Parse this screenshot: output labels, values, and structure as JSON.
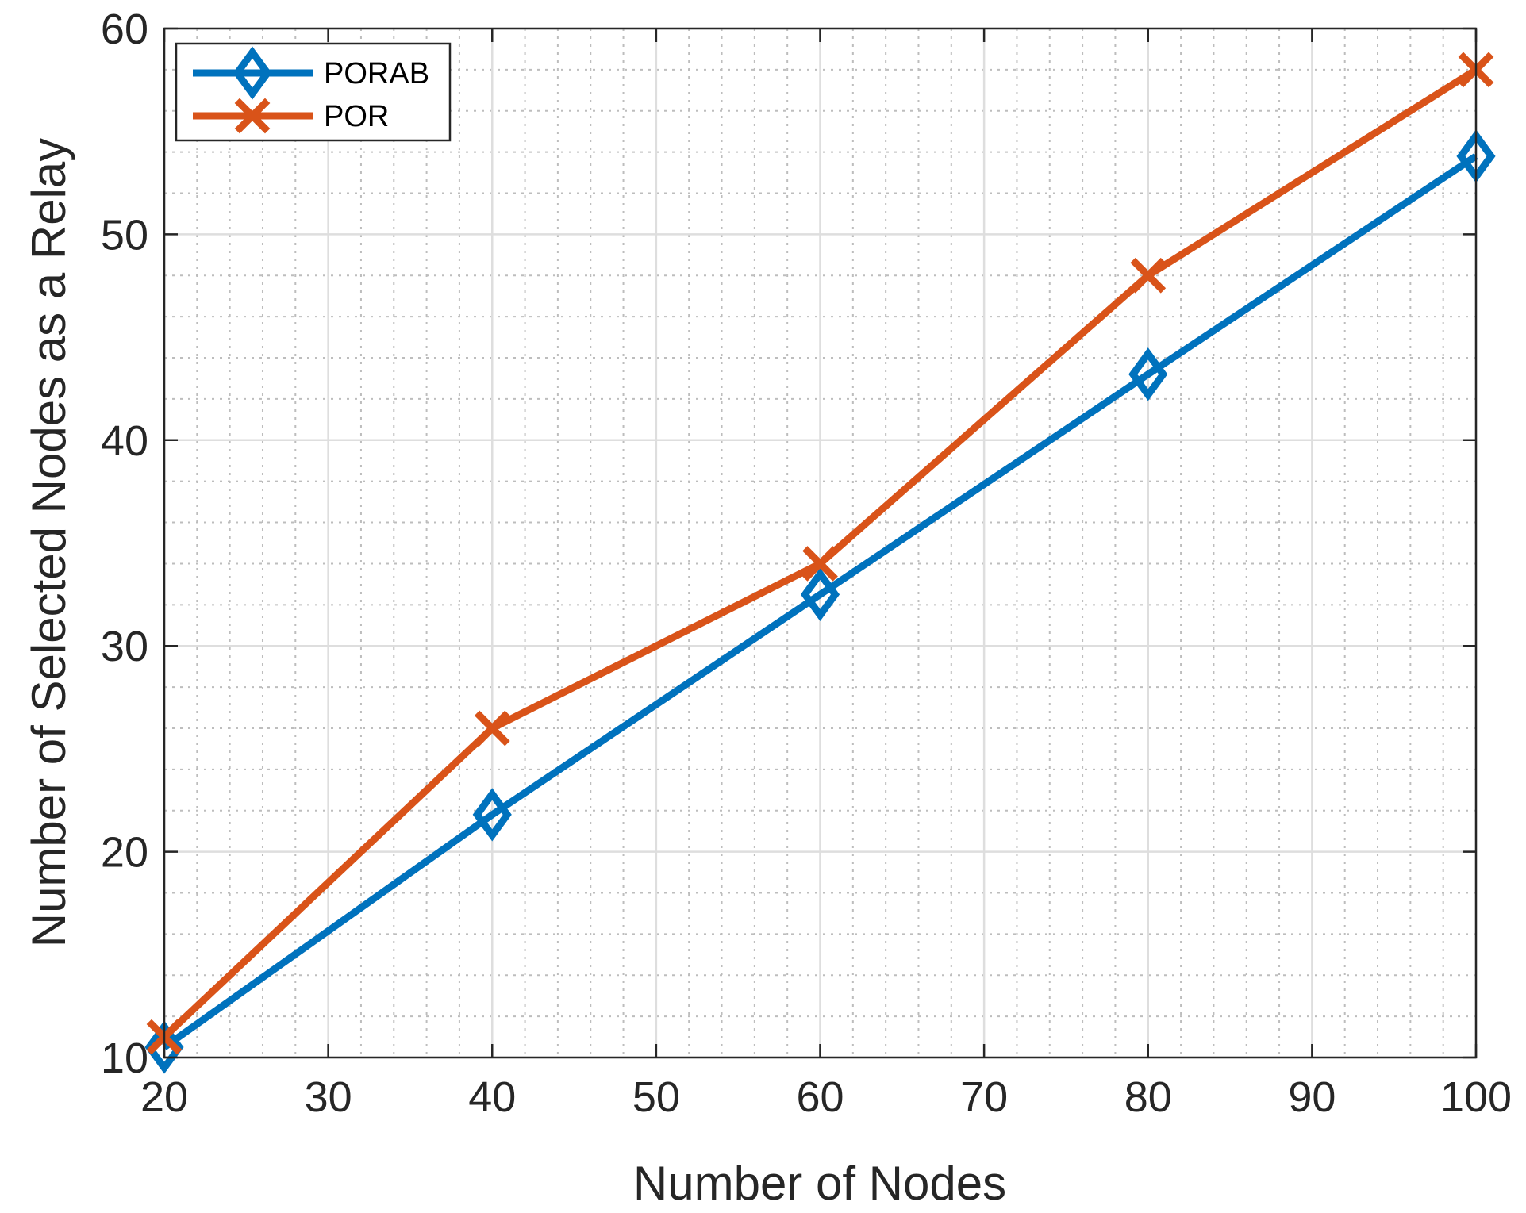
{
  "chart_data": {
    "type": "line",
    "title": "",
    "xlabel": "Number of Nodes",
    "ylabel": "Number of Selected Nodes as a Relay",
    "xlim": [
      20,
      100
    ],
    "ylim": [
      10,
      60
    ],
    "x_ticks": [
      20,
      30,
      40,
      50,
      60,
      70,
      80,
      90,
      100
    ],
    "y_ticks": [
      10,
      20,
      30,
      40,
      50,
      60
    ],
    "x_minor_step": 2,
    "y_minor_step": 2,
    "grid": true,
    "minor_grid": true,
    "legend_position": "top-left",
    "x": [
      20,
      40,
      60,
      80,
      100
    ],
    "series": [
      {
        "name": "PORAB",
        "values": [
          10.5,
          21.8,
          32.5,
          43.2,
          53.8
        ],
        "color": "#0072BD",
        "marker": "diamond"
      },
      {
        "name": "POR",
        "values": [
          11,
          26,
          34,
          48,
          58
        ],
        "color": "#D95319",
        "marker": "x"
      }
    ]
  }
}
